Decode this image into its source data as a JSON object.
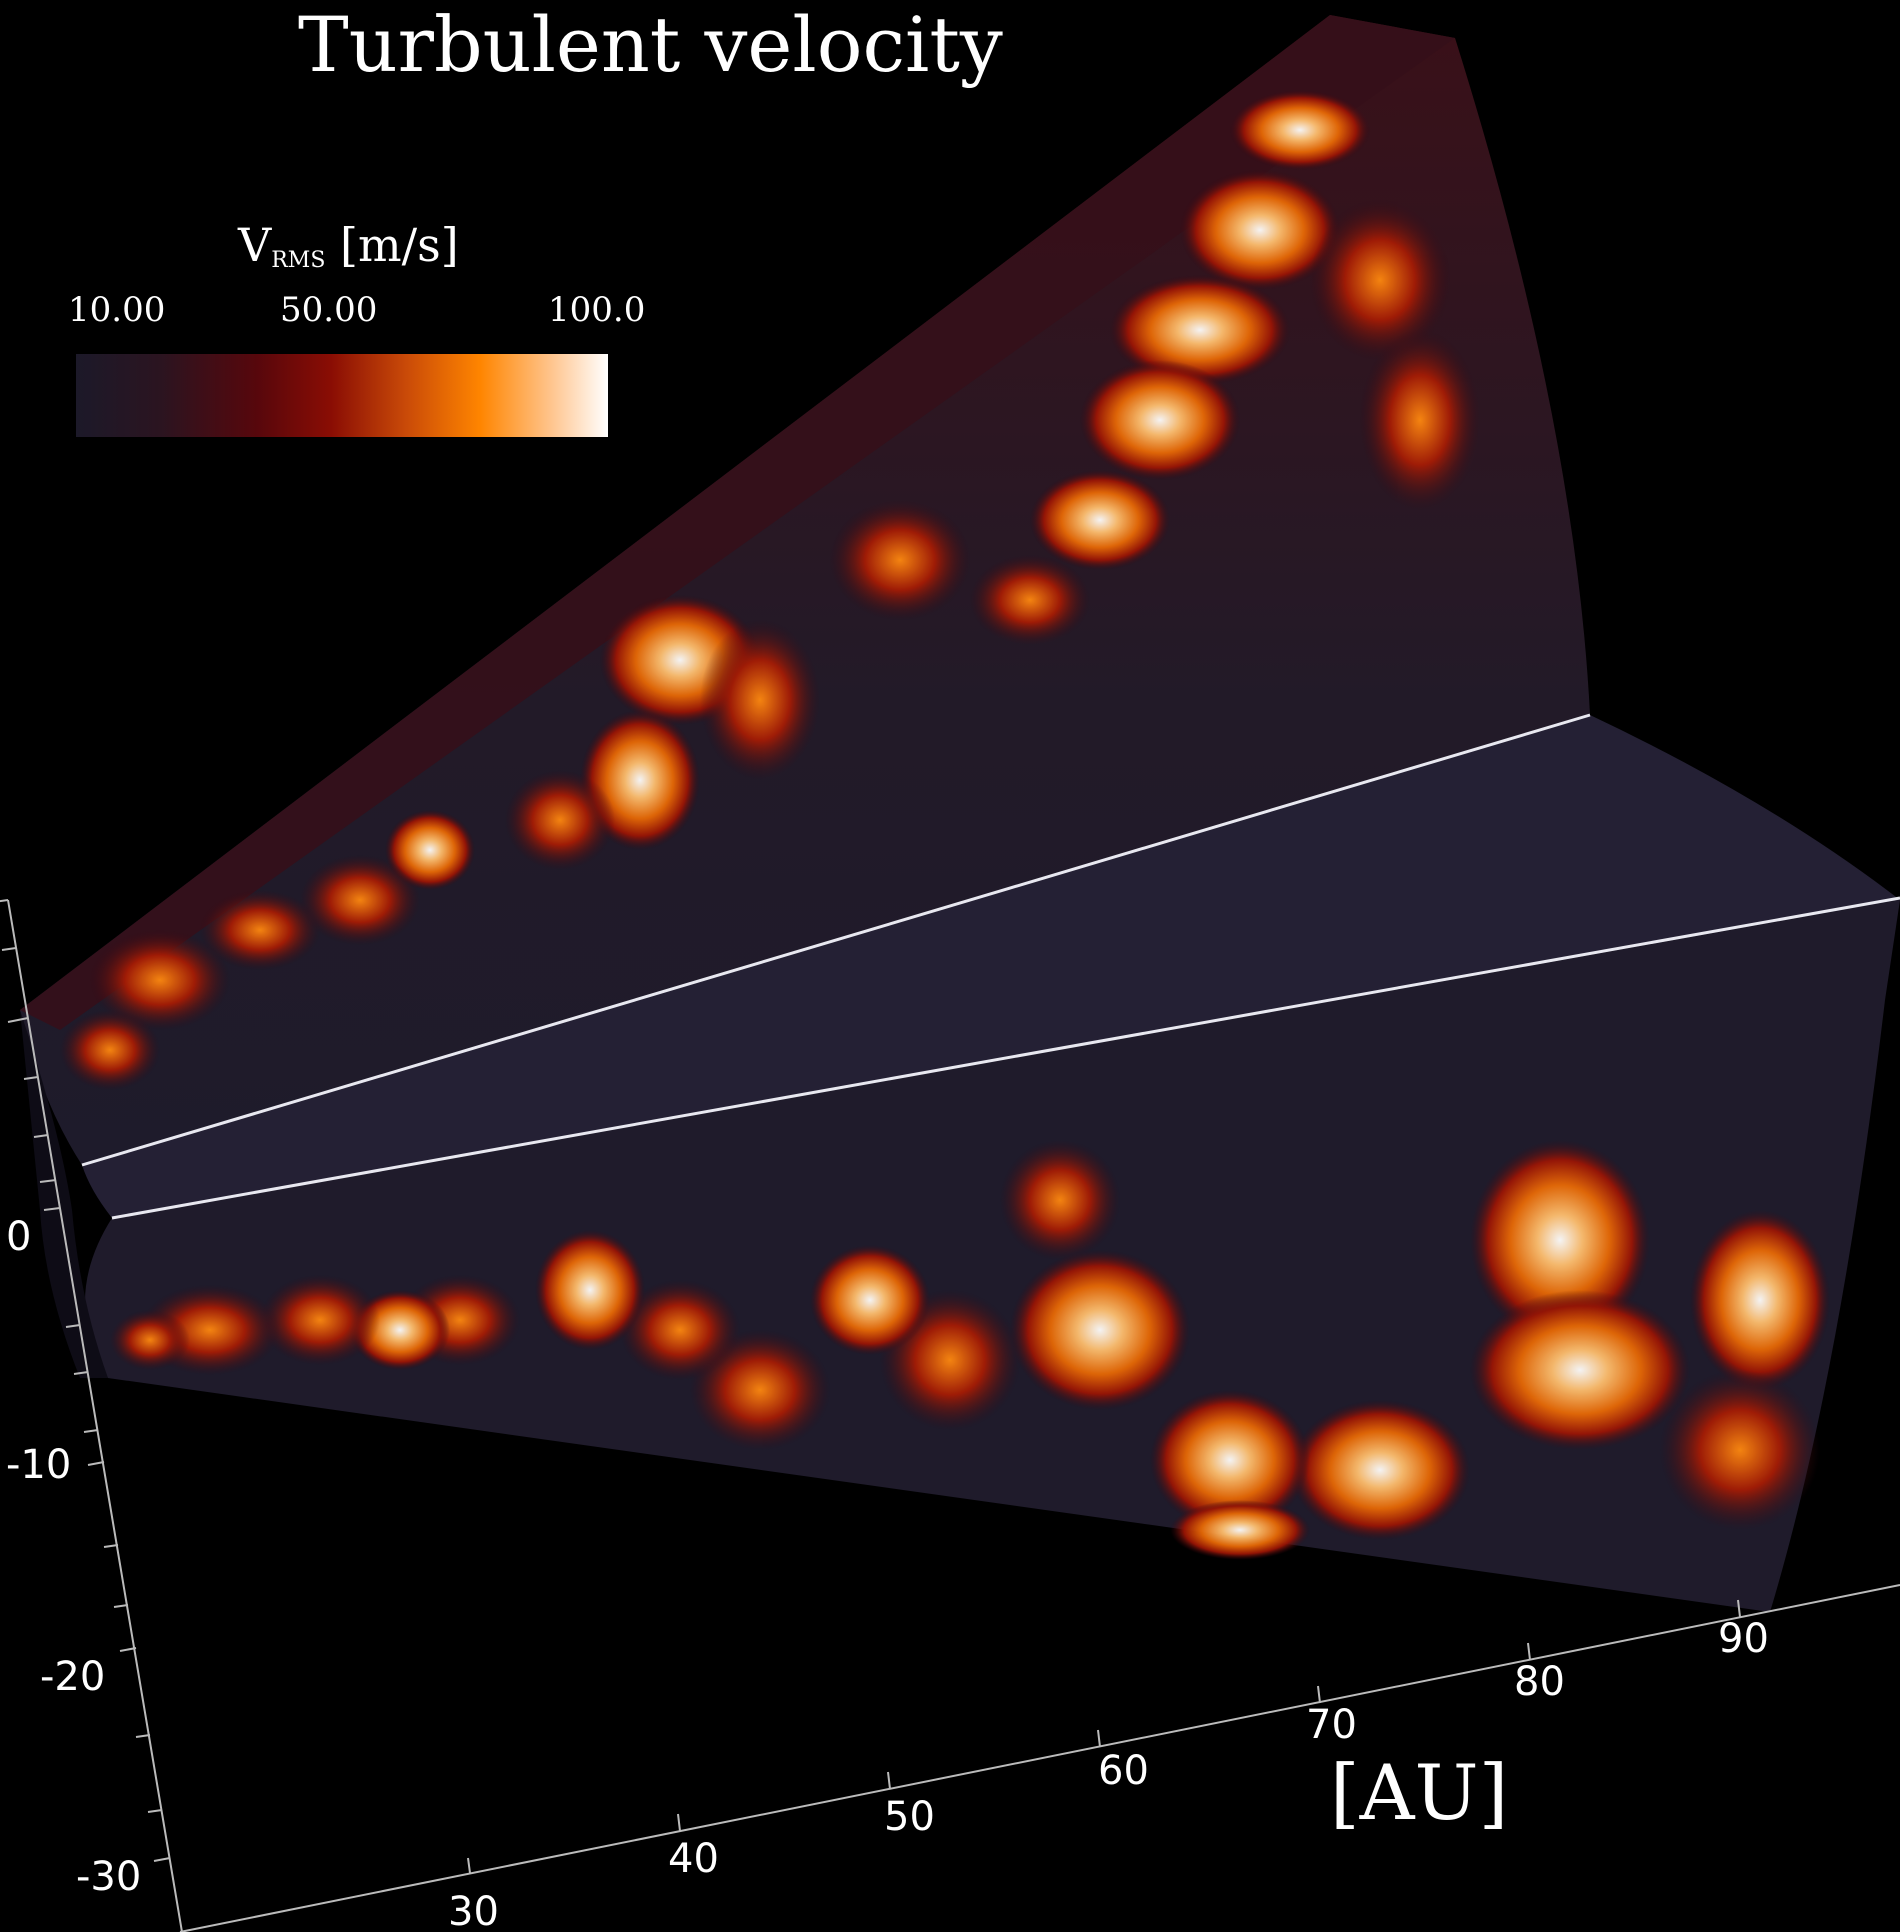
{
  "title": "Turbulent velocity",
  "colorbar": {
    "label_main": "V",
    "label_sub": "RMS",
    "label_unit": "[m/s]",
    "ticks": [
      "10.00",
      "50.00",
      "100.0"
    ]
  },
  "axis_label": "[AU]",
  "vertical_axis_ticks": [
    "0",
    "-10",
    "-20",
    "-30"
  ],
  "depth_axis_ticks": [
    "30",
    "40",
    "50",
    "60",
    "70",
    "80",
    "90"
  ],
  "colors": {
    "background": "#000000",
    "low": "#1c1929",
    "mid": "#8a0d04",
    "high": "#ff8500",
    "max": "#ffffff"
  }
}
